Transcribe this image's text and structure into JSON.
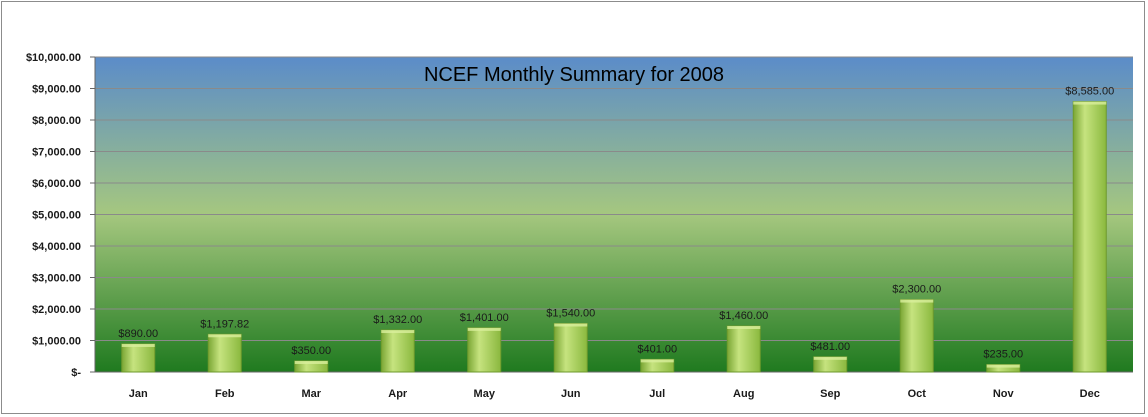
{
  "chart_data": {
    "type": "bar",
    "title": "NCEF Monthly Summary for 2008",
    "xlabel": "",
    "ylabel": "",
    "categories": [
      "Jan",
      "Feb",
      "Mar",
      "Apr",
      "May",
      "Jun",
      "Jul",
      "Aug",
      "Sep",
      "Oct",
      "Nov",
      "Dec"
    ],
    "values": [
      890,
      1197.82,
      350,
      1332,
      1401,
      1540,
      401,
      1460,
      481,
      2300,
      235,
      8585
    ],
    "data_labels": [
      "$890.00",
      "$1,197.82",
      "$350.00",
      "$1,332.00",
      "$1,401.00",
      "$1,540.00",
      "$401.00",
      "$1,460.00",
      "$481.00",
      "$2,300.00",
      "$235.00",
      "$8,585.00"
    ],
    "ylim": [
      0,
      10000
    ],
    "y_ticks": [
      0,
      1000,
      2000,
      3000,
      4000,
      5000,
      6000,
      7000,
      8000,
      9000,
      10000
    ],
    "y_tick_labels": [
      "$-",
      "$1,000.00",
      "$2,000.00",
      "$3,000.00",
      "$4,000.00",
      "$5,000.00",
      "$6,000.00",
      "$7,000.00",
      "$8,000.00",
      "$9,000.00",
      "$10,000.00"
    ],
    "grid": true,
    "legend": "none",
    "colors": {
      "bar": "#9dcc4a",
      "plot_top": "#5b8cc9",
      "plot_mid": "#a5c77f",
      "plot_bottom": "#1f7a1f"
    }
  }
}
